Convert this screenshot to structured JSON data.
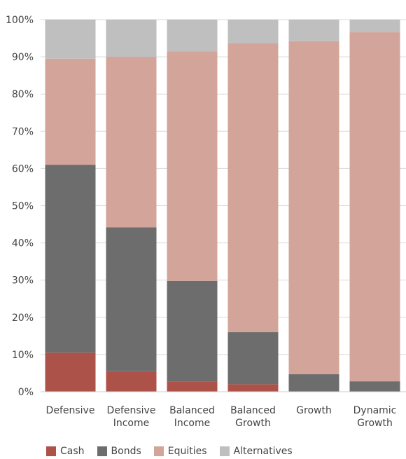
{
  "chart_data": {
    "type": "bar",
    "stacked": true,
    "categories": [
      [
        "Defensive"
      ],
      [
        "Defensive",
        "Income"
      ],
      [
        "Balanced",
        "Income"
      ],
      [
        "Balanced",
        "Growth"
      ],
      [
        "Growth"
      ],
      [
        "Dynamic",
        "Growth"
      ]
    ],
    "series": [
      {
        "name": "Cash",
        "color": "#ad5248",
        "values": [
          10.5,
          5.5,
          2.8,
          2.0,
          0.0,
          0.0
        ]
      },
      {
        "name": "Bonds",
        "color": "#6d6d6d",
        "values": [
          50.5,
          38.7,
          27.0,
          14.0,
          4.7,
          2.8
        ]
      },
      {
        "name": "Equities",
        "color": "#d3a499",
        "values": [
          28.5,
          45.8,
          61.7,
          77.6,
          89.5,
          93.8
        ]
      },
      {
        "name": "Alternatives",
        "color": "#bfbfbf",
        "values": [
          10.5,
          10.0,
          8.5,
          6.4,
          5.8,
          3.4
        ]
      }
    ],
    "ylim": [
      0,
      100
    ],
    "yticks": [
      "0%",
      "10%",
      "20%",
      "30%",
      "40%",
      "50%",
      "60%",
      "70%",
      "80%",
      "90%",
      "100%"
    ],
    "grid": true,
    "legend_position": "bottom-left",
    "title": "",
    "xlabel": "",
    "ylabel": ""
  }
}
